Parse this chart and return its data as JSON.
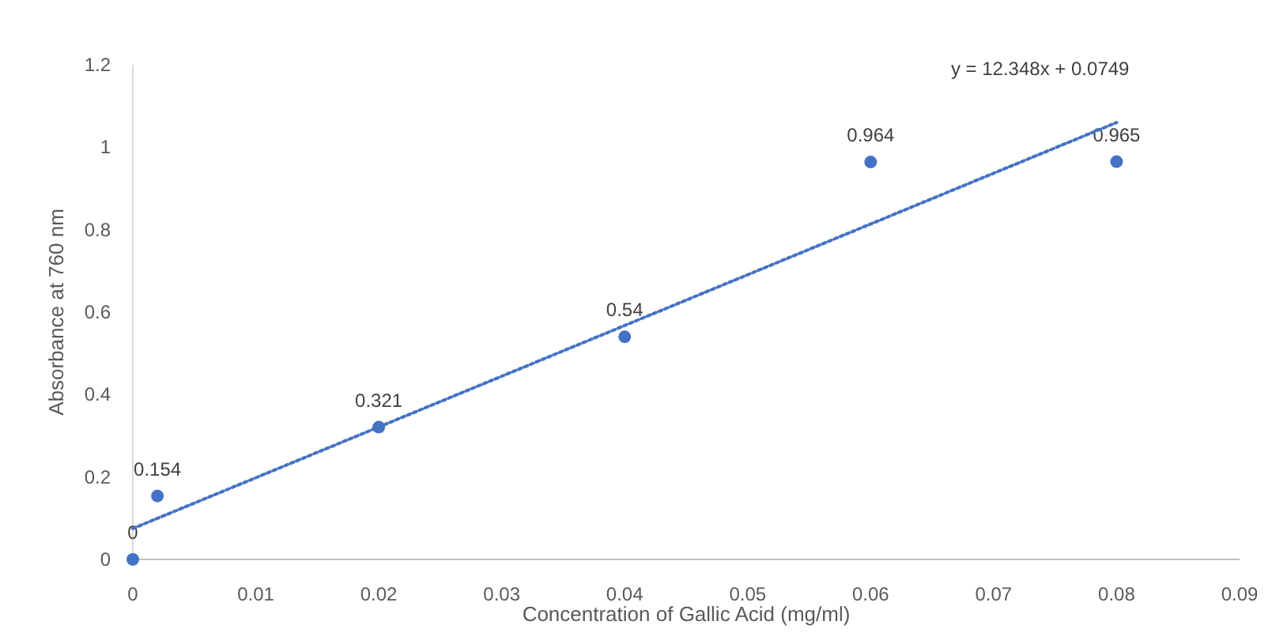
{
  "chart_data": {
    "type": "scatter",
    "xlabel": "Concentration of Gallic Acid (mg/ml)",
    "ylabel": "Absorbance at 760 nm",
    "xlim": [
      0,
      0.09
    ],
    "ylim": [
      0,
      1.2
    ],
    "xticks": [
      0,
      0.01,
      0.02,
      0.03,
      0.04,
      0.05,
      0.06,
      0.07,
      0.08,
      0.09
    ],
    "yticks": [
      0,
      0.2,
      0.4,
      0.6,
      0.8,
      1,
      1.2
    ],
    "grid": false,
    "marker": "circle",
    "series": [
      {
        "color": "#4472c4",
        "x": [
          0,
          0.002,
          0.02,
          0.04,
          0.06,
          0.08
        ],
        "values": [
          0,
          0.154,
          0.321,
          0.54,
          0.964,
          0.965
        ],
        "value_labels": [
          "0",
          "0.154",
          "0.321",
          "0.54",
          "0.964",
          "0.965"
        ]
      },
      {
        "type": "line",
        "color": "#4472c4",
        "line_style": "dotted",
        "marker": "none",
        "x": [
          0,
          0.08
        ],
        "values": [
          0.075,
          1.06
        ]
      }
    ],
    "annotations": [
      {
        "text": "y = 12.348x + 0.0749",
        "x": 0.08,
        "y": 1.06
      }
    ]
  }
}
